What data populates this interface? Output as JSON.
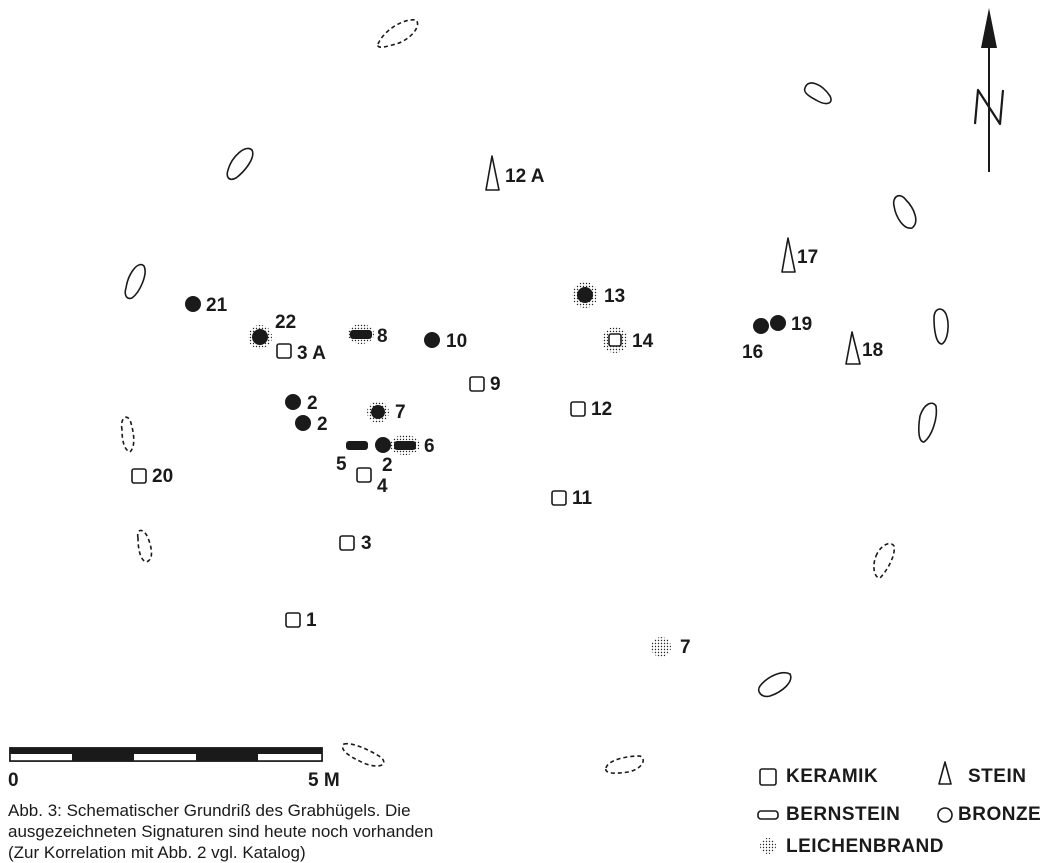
{
  "legend": {
    "keramik": "KERAMIK",
    "stein": "STEIN",
    "bernstein": "BERNSTEIN",
    "bronze": "BRONZE",
    "leichenbrand": "LEICHENBRAND"
  },
  "scale": {
    "start": "0",
    "end": "5 M"
  },
  "north_label": "N",
  "caption": {
    "line1": "Abb. 3: Schematischer Grundriß des Grabhügels. Die",
    "line2": "ausgezeichneten Signaturen sind heute noch vorhanden",
    "line3": "(Zur Korrelation mit Abb. 2 vgl. Katalog)"
  },
  "finds": {
    "f12a": "12 A",
    "f17": "17",
    "f18": "18",
    "f21": "21",
    "f22": "22",
    "f3a": "3 A",
    "f8": "8",
    "f10": "10",
    "f13": "13",
    "f14": "14",
    "f16": "16",
    "f19": "19",
    "f9": "9",
    "f2a": "2",
    "f2b": "2",
    "f7a": "7",
    "f12": "12",
    "f6": "6",
    "f5": "5",
    "f2c": "2",
    "f4": "4",
    "f20": "20",
    "f11": "11",
    "f3": "3",
    "f1": "1",
    "f7b": "7"
  },
  "colors": {
    "ink": "#1a1a1a"
  }
}
